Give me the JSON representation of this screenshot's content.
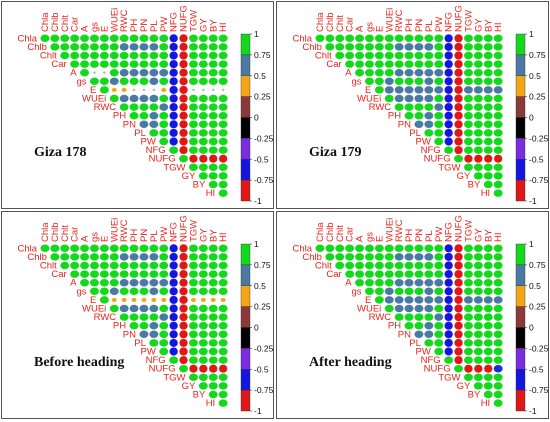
{
  "chart_data": {
    "type": "heatmap",
    "variables": [
      "Chla",
      "Chlb",
      "Chlt",
      "Car",
      "A",
      "gs",
      "E",
      "WUEi",
      "RWC",
      "PH",
      "PN",
      "PL",
      "PW",
      "NFG",
      "NUFG",
      "TGW",
      "GY",
      "BY",
      "HI"
    ],
    "colorbar": {
      "ticks": [
        "1",
        "0.75",
        "0.5",
        "0.25",
        "0",
        "-0.25",
        "-0.5",
        "-0.75",
        "-1"
      ],
      "colors": [
        "#13d81b",
        "#4a7aa3",
        "#f2a516",
        "#8b3a3a",
        "#000000",
        "#7b2be0",
        "#1515e0",
        "#e01717"
      ]
    },
    "panels": [
      {
        "title": "Giza 178",
        "special_cols": {
          "NFG": "navy",
          "NUFG": "red"
        },
        "row_overrides": {
          "E": {
            "default": "small",
            "WUEi": "orange",
            "RWC": "orange",
            "PW": "orange"
          }
        },
        "scattered_small": [
          [
            4,
            5
          ],
          [
            4,
            6
          ]
        ],
        "nufg_row": [
          "red",
          "red",
          "red",
          "red",
          "red"
        ]
      },
      {
        "title": "Giza 179",
        "special_cols": {
          "NFG": "navy",
          "NUFG": "red"
        },
        "row_overrides": {
          "E": {
            "default": "steel"
          }
        },
        "scattered_small": [],
        "nufg_row": [
          "red",
          "red",
          "red",
          "red",
          "red"
        ]
      },
      {
        "title": "Before heading",
        "special_cols": {
          "NFG": "navy",
          "NUFG": "red"
        },
        "row_overrides": {
          "E": {
            "default": "orange"
          }
        },
        "scattered_small": [],
        "nufg_row": [
          "red",
          "red",
          "red",
          "red",
          "red"
        ]
      },
      {
        "title": "After heading",
        "special_cols": {
          "NFG": "navy",
          "NUFG": "red"
        },
        "row_overrides": {
          "E": {
            "default": "steel"
          }
        },
        "scattered_small": [],
        "nufg_row": [
          "red",
          "red",
          "red",
          "blue",
          "red"
        ]
      }
    ]
  }
}
